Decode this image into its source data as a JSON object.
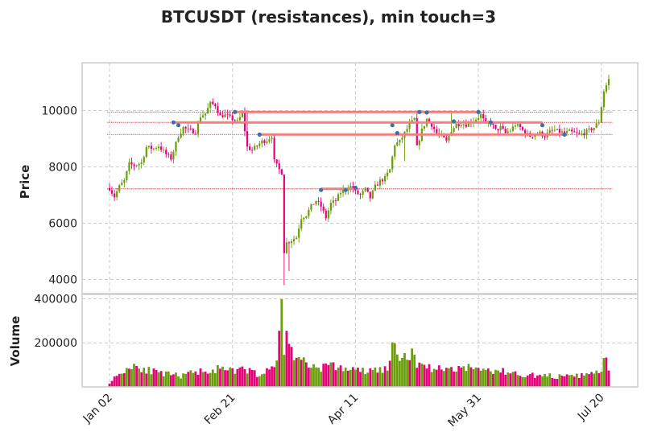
{
  "chart_data": {
    "type": "candlestick",
    "title": "BTCUSDT (resistances), min touch=3",
    "grid": true,
    "colors": {
      "up": "#6a9e0a",
      "down": "#e6007a",
      "resistance_line": "#f08080",
      "resistance_hline": "#d62728",
      "touch_marker": "#3a6fb0"
    },
    "price_panel": {
      "ylabel": "Price",
      "ylim": [
        3500,
        11700
      ],
      "yticks": [
        4000,
        6000,
        8000,
        10000
      ],
      "ytick_labels": [
        "4000",
        "6000",
        "8000",
        "10000"
      ]
    },
    "volume_panel": {
      "ylabel": "Volume",
      "ylim": [
        0,
        420000
      ],
      "yticks": [
        200000,
        400000
      ],
      "ytick_labels": [
        "200000",
        "400000"
      ]
    },
    "x_axis": {
      "start_date": "2020-01-02",
      "num_days": 204,
      "tick_labels": [
        "Jan 02",
        "Feb 21",
        "Apr 11",
        "May 31",
        "Jul 20"
      ],
      "tick_days": [
        0,
        50,
        100,
        150,
        200
      ]
    },
    "price_anchors": [
      [
        0,
        7250
      ],
      [
        2,
        6950
      ],
      [
        4,
        7300
      ],
      [
        6,
        7500
      ],
      [
        8,
        8100
      ],
      [
        10,
        8050
      ],
      [
        13,
        8150
      ],
      [
        15,
        8700
      ],
      [
        18,
        8650
      ],
      [
        20,
        8750
      ],
      [
        23,
        8450
      ],
      [
        25,
        8300
      ],
      [
        28,
        9100
      ],
      [
        30,
        9400
      ],
      [
        32,
        9300
      ],
      [
        35,
        9250
      ],
      [
        37,
        9800
      ],
      [
        39,
        9900
      ],
      [
        41,
        10250
      ],
      [
        43,
        10200
      ],
      [
        45,
        9800
      ],
      [
        47,
        9850
      ],
      [
        50,
        9700
      ],
      [
        52,
        9600
      ],
      [
        54,
        9900
      ],
      [
        56,
        8700
      ],
      [
        58,
        8600
      ],
      [
        60,
        8750
      ],
      [
        62,
        8900
      ],
      [
        64,
        8950
      ],
      [
        66,
        9100
      ],
      [
        67,
        8200
      ],
      [
        69,
        7900
      ],
      [
        70,
        7800
      ],
      [
        71,
        5000
      ],
      [
        72,
        5300
      ],
      [
        74,
        5400
      ],
      [
        76,
        5500
      ],
      [
        78,
        6200
      ],
      [
        80,
        6300
      ],
      [
        82,
        6600
      ],
      [
        84,
        6800
      ],
      [
        86,
        6600
      ],
      [
        88,
        6200
      ],
      [
        90,
        6700
      ],
      [
        92,
        6800
      ],
      [
        94,
        7100
      ],
      [
        96,
        7200
      ],
      [
        98,
        7300
      ],
      [
        100,
        7100
      ],
      [
        102,
        7000
      ],
      [
        104,
        7200
      ],
      [
        106,
        6900
      ],
      [
        108,
        7300
      ],
      [
        110,
        7500
      ],
      [
        112,
        7600
      ],
      [
        114,
        7900
      ],
      [
        116,
        8800
      ],
      [
        118,
        8900
      ],
      [
        120,
        9200
      ],
      [
        122,
        9500
      ],
      [
        124,
        9700
      ],
      [
        125,
        8700
      ],
      [
        127,
        9300
      ],
      [
        129,
        9700
      ],
      [
        131,
        9500
      ],
      [
        133,
        9200
      ],
      [
        135,
        9100
      ],
      [
        137,
        8900
      ],
      [
        139,
        9300
      ],
      [
        141,
        9500
      ],
      [
        143,
        9550
      ],
      [
        145,
        9500
      ],
      [
        147,
        9600
      ],
      [
        149,
        9700
      ],
      [
        151,
        9850
      ],
      [
        153,
        9500
      ],
      [
        155,
        9600
      ],
      [
        157,
        9300
      ],
      [
        159,
        9400
      ],
      [
        161,
        9200
      ],
      [
        163,
        9300
      ],
      [
        165,
        9500
      ],
      [
        167,
        9400
      ],
      [
        169,
        9200
      ],
      [
        171,
        9100
      ],
      [
        173,
        9150
      ],
      [
        175,
        9200
      ],
      [
        177,
        9100
      ],
      [
        179,
        9250
      ],
      [
        181,
        9300
      ],
      [
        183,
        9250
      ],
      [
        185,
        9200
      ],
      [
        187,
        9250
      ],
      [
        189,
        9200
      ],
      [
        191,
        9150
      ],
      [
        193,
        9200
      ],
      [
        195,
        9300
      ],
      [
        197,
        9400
      ],
      [
        199,
        9600
      ],
      [
        201,
        10700
      ],
      [
        203,
        11100
      ]
    ],
    "spikes": [
      [
        71,
        3800
      ],
      [
        73,
        4300
      ],
      [
        56,
        10000
      ],
      [
        120,
        8200
      ],
      [
        139,
        10000
      ]
    ],
    "volume_anchors": [
      [
        0,
        20000
      ],
      [
        5,
        70000
      ],
      [
        10,
        100000
      ],
      [
        15,
        80000
      ],
      [
        20,
        60000
      ],
      [
        25,
        55000
      ],
      [
        30,
        50000
      ],
      [
        35,
        70000
      ],
      [
        40,
        75000
      ],
      [
        45,
        80000
      ],
      [
        50,
        70000
      ],
      [
        55,
        80000
      ],
      [
        60,
        60000
      ],
      [
        65,
        70000
      ],
      [
        68,
        120000
      ],
      [
        69,
        260000
      ],
      [
        70,
        400000
      ],
      [
        71,
        180000
      ],
      [
        72,
        220000
      ],
      [
        74,
        160000
      ],
      [
        76,
        140000
      ],
      [
        78,
        130000
      ],
      [
        80,
        100000
      ],
      [
        85,
        90000
      ],
      [
        90,
        95000
      ],
      [
        95,
        85000
      ],
      [
        100,
        75000
      ],
      [
        105,
        70000
      ],
      [
        110,
        80000
      ],
      [
        113,
        80000
      ],
      [
        115,
        200000
      ],
      [
        117,
        120000
      ],
      [
        120,
        140000
      ],
      [
        122,
        160000
      ],
      [
        124,
        120000
      ],
      [
        126,
        110000
      ],
      [
        130,
        90000
      ],
      [
        135,
        80000
      ],
      [
        140,
        85000
      ],
      [
        145,
        90000
      ],
      [
        150,
        80000
      ],
      [
        155,
        75000
      ],
      [
        160,
        70000
      ],
      [
        165,
        60000
      ],
      [
        170,
        55000
      ],
      [
        175,
        50000
      ],
      [
        180,
        50000
      ],
      [
        185,
        45000
      ],
      [
        190,
        50000
      ],
      [
        195,
        55000
      ],
      [
        199,
        70000
      ],
      [
        200,
        80000
      ],
      [
        201,
        150000
      ],
      [
        202,
        110000
      ],
      [
        203,
        60000
      ]
    ],
    "resistance_segments": [
      {
        "level": 9950,
        "start_day": 51,
        "end_day": 150
      },
      {
        "level": 9580,
        "start_day": 26,
        "end_day": 176
      },
      {
        "level": 9150,
        "start_day": 61,
        "end_day": 185
      },
      {
        "level": 7220,
        "start_day": 86,
        "end_day": 100
      }
    ],
    "resistance_hlines": [
      9950,
      9580,
      9150,
      7220
    ],
    "touch_points": [
      [
        26,
        9580
      ],
      [
        28,
        9480
      ],
      [
        51,
        9950
      ],
      [
        61,
        9150
      ],
      [
        86,
        7180
      ],
      [
        96,
        7180
      ],
      [
        100,
        7260
      ],
      [
        115,
        9480
      ],
      [
        117,
        9200
      ],
      [
        126,
        9950
      ],
      [
        129,
        9930
      ],
      [
        140,
        9620
      ],
      [
        150,
        9950
      ],
      [
        155,
        9580
      ],
      [
        176,
        9480
      ],
      [
        185,
        9150
      ]
    ]
  }
}
